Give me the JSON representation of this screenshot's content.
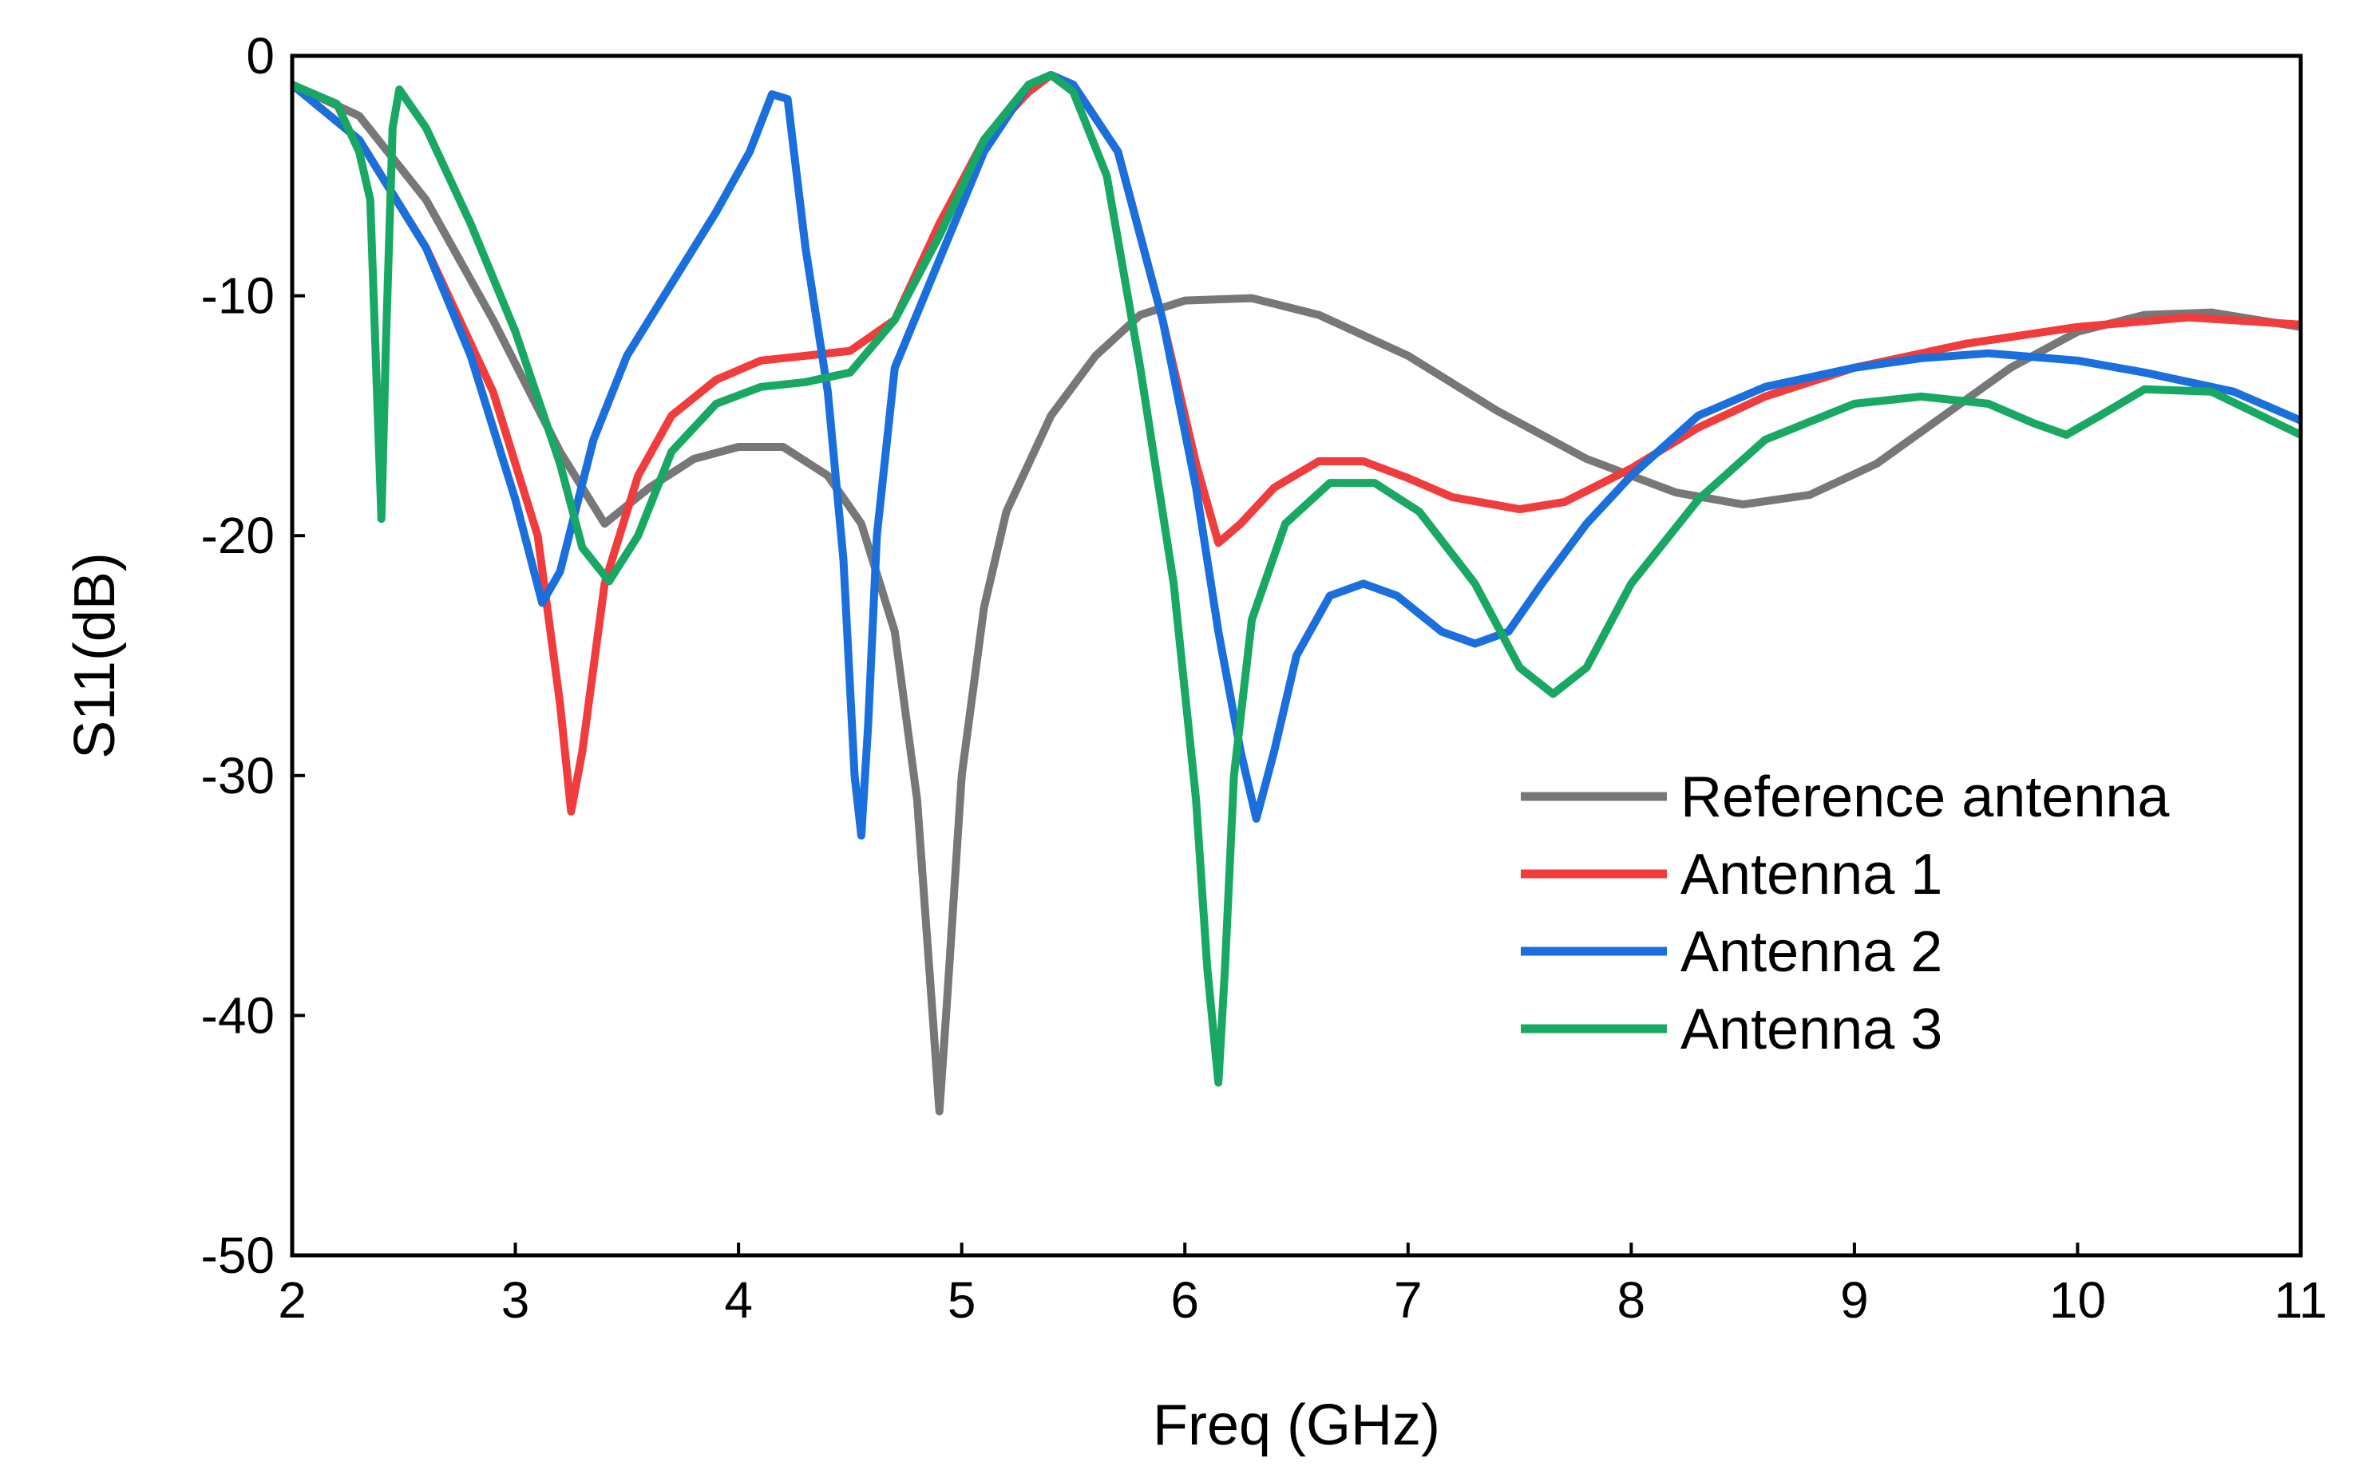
{
  "chart_data": {
    "type": "line",
    "title": "",
    "xlabel": "Freq (GHz)",
    "ylabel": "S11(dB)",
    "xlim": [
      2,
      11
    ],
    "ylim": [
      -50,
      0
    ],
    "x_ticks": [
      2,
      3,
      4,
      5,
      6,
      7,
      8,
      9,
      10,
      11
    ],
    "y_ticks": [
      0,
      -10,
      -20,
      -30,
      -40,
      -50
    ],
    "x_tick_labels": [
      "2",
      "3",
      "4",
      "5",
      "6",
      "7",
      "8",
      "9",
      "10",
      "11"
    ],
    "y_tick_labels": [
      "0",
      "-10",
      "-20",
      "-30",
      "-40",
      "-50"
    ],
    "grid": false,
    "legend_position": "bottom-right",
    "series": [
      {
        "name": "Reference antenna",
        "color": "#777777",
        "points": [
          [
            2.0,
            -1.2
          ],
          [
            2.3,
            -2.5
          ],
          [
            2.6,
            -6.0
          ],
          [
            2.9,
            -11.0
          ],
          [
            3.2,
            -16.5
          ],
          [
            3.4,
            -19.5
          ],
          [
            3.6,
            -18.0
          ],
          [
            3.8,
            -16.8
          ],
          [
            4.0,
            -16.3
          ],
          [
            4.2,
            -16.3
          ],
          [
            4.4,
            -17.5
          ],
          [
            4.55,
            -19.5
          ],
          [
            4.7,
            -24.0
          ],
          [
            4.8,
            -31.0
          ],
          [
            4.87,
            -40.0
          ],
          [
            4.9,
            -44.0
          ],
          [
            4.93,
            -40.0
          ],
          [
            5.0,
            -30.0
          ],
          [
            5.1,
            -23.0
          ],
          [
            5.2,
            -19.0
          ],
          [
            5.4,
            -15.0
          ],
          [
            5.6,
            -12.5
          ],
          [
            5.8,
            -10.8
          ],
          [
            6.0,
            -10.2
          ],
          [
            6.3,
            -10.1
          ],
          [
            6.6,
            -10.8
          ],
          [
            7.0,
            -12.5
          ],
          [
            7.4,
            -14.8
          ],
          [
            7.8,
            -16.8
          ],
          [
            8.2,
            -18.2
          ],
          [
            8.5,
            -18.7
          ],
          [
            8.8,
            -18.3
          ],
          [
            9.1,
            -17.0
          ],
          [
            9.4,
            -15.0
          ],
          [
            9.7,
            -13.0
          ],
          [
            10.0,
            -11.5
          ],
          [
            10.3,
            -10.8
          ],
          [
            10.6,
            -10.7
          ],
          [
            11.0,
            -11.3
          ]
        ]
      },
      {
        "name": "Antenna 1",
        "color": "#f03c3c",
        "points": [
          [
            2.0,
            -1.2
          ],
          [
            2.3,
            -3.5
          ],
          [
            2.6,
            -8.0
          ],
          [
            2.9,
            -14.0
          ],
          [
            3.1,
            -20.0
          ],
          [
            3.2,
            -27.0
          ],
          [
            3.25,
            -31.5
          ],
          [
            3.3,
            -29.0
          ],
          [
            3.4,
            -22.0
          ],
          [
            3.55,
            -17.5
          ],
          [
            3.7,
            -15.0
          ],
          [
            3.9,
            -13.5
          ],
          [
            4.1,
            -12.7
          ],
          [
            4.3,
            -12.5
          ],
          [
            4.5,
            -12.3
          ],
          [
            4.7,
            -11.0
          ],
          [
            4.9,
            -7.0
          ],
          [
            5.1,
            -3.5
          ],
          [
            5.3,
            -1.5
          ],
          [
            5.4,
            -0.8
          ],
          [
            5.5,
            -1.2
          ],
          [
            5.7,
            -4.0
          ],
          [
            5.9,
            -11.0
          ],
          [
            6.05,
            -17.0
          ],
          [
            6.15,
            -20.3
          ],
          [
            6.25,
            -19.5
          ],
          [
            6.4,
            -18.0
          ],
          [
            6.6,
            -16.9
          ],
          [
            6.8,
            -16.9
          ],
          [
            7.0,
            -17.6
          ],
          [
            7.2,
            -18.4
          ],
          [
            7.5,
            -18.9
          ],
          [
            7.7,
            -18.6
          ],
          [
            8.0,
            -17.2
          ],
          [
            8.3,
            -15.5
          ],
          [
            8.6,
            -14.2
          ],
          [
            9.0,
            -13.0
          ],
          [
            9.5,
            -12.0
          ],
          [
            10.0,
            -11.3
          ],
          [
            10.5,
            -10.9
          ],
          [
            11.0,
            -11.2
          ]
        ]
      },
      {
        "name": "Antenna 2",
        "color": "#1a6fdc",
        "points": [
          [
            2.0,
            -1.2
          ],
          [
            2.3,
            -3.5
          ],
          [
            2.6,
            -8.0
          ],
          [
            2.8,
            -12.5
          ],
          [
            3.0,
            -18.5
          ],
          [
            3.12,
            -22.8
          ],
          [
            3.2,
            -21.5
          ],
          [
            3.35,
            -16.0
          ],
          [
            3.5,
            -12.5
          ],
          [
            3.7,
            -9.5
          ],
          [
            3.9,
            -6.5
          ],
          [
            4.05,
            -4.0
          ],
          [
            4.15,
            -1.6
          ],
          [
            4.22,
            -1.8
          ],
          [
            4.3,
            -8.0
          ],
          [
            4.4,
            -14.0
          ],
          [
            4.47,
            -21.0
          ],
          [
            4.52,
            -30.0
          ],
          [
            4.55,
            -32.5
          ],
          [
            4.58,
            -28.0
          ],
          [
            4.62,
            -20.0
          ],
          [
            4.7,
            -13.0
          ],
          [
            4.9,
            -8.5
          ],
          [
            5.1,
            -4.0
          ],
          [
            5.3,
            -1.2
          ],
          [
            5.4,
            -0.8
          ],
          [
            5.5,
            -1.2
          ],
          [
            5.7,
            -4.0
          ],
          [
            5.9,
            -11.0
          ],
          [
            6.05,
            -18.0
          ],
          [
            6.15,
            -24.0
          ],
          [
            6.25,
            -29.0
          ],
          [
            6.32,
            -31.8
          ],
          [
            6.4,
            -29.0
          ],
          [
            6.5,
            -25.0
          ],
          [
            6.65,
            -22.5
          ],
          [
            6.8,
            -22.0
          ],
          [
            6.95,
            -22.5
          ],
          [
            7.15,
            -24.0
          ],
          [
            7.3,
            -24.5
          ],
          [
            7.45,
            -24.0
          ],
          [
            7.6,
            -22.0
          ],
          [
            7.8,
            -19.5
          ],
          [
            8.0,
            -17.5
          ],
          [
            8.3,
            -15.0
          ],
          [
            8.6,
            -13.8
          ],
          [
            9.0,
            -13.0
          ],
          [
            9.3,
            -12.6
          ],
          [
            9.6,
            -12.4
          ],
          [
            10.0,
            -12.7
          ],
          [
            10.3,
            -13.2
          ],
          [
            10.7,
            -14.0
          ],
          [
            11.0,
            -15.2
          ]
        ]
      },
      {
        "name": "Antenna 3",
        "color": "#18a864",
        "points": [
          [
            2.0,
            -1.2
          ],
          [
            2.2,
            -2.0
          ],
          [
            2.3,
            -4.0
          ],
          [
            2.35,
            -6.0
          ],
          [
            2.38,
            -14.0
          ],
          [
            2.4,
            -19.3
          ],
          [
            2.42,
            -12.0
          ],
          [
            2.45,
            -3.0
          ],
          [
            2.48,
            -1.4
          ],
          [
            2.6,
            -3.0
          ],
          [
            2.8,
            -7.0
          ],
          [
            3.0,
            -11.5
          ],
          [
            3.2,
            -17.0
          ],
          [
            3.3,
            -20.5
          ],
          [
            3.42,
            -21.9
          ],
          [
            3.55,
            -20.0
          ],
          [
            3.7,
            -16.5
          ],
          [
            3.9,
            -14.5
          ],
          [
            4.1,
            -13.8
          ],
          [
            4.3,
            -13.6
          ],
          [
            4.5,
            -13.2
          ],
          [
            4.7,
            -11.0
          ],
          [
            4.9,
            -7.5
          ],
          [
            5.1,
            -3.5
          ],
          [
            5.3,
            -1.2
          ],
          [
            5.4,
            -0.8
          ],
          [
            5.5,
            -1.5
          ],
          [
            5.65,
            -5.0
          ],
          [
            5.8,
            -13.0
          ],
          [
            5.95,
            -22.0
          ],
          [
            6.05,
            -31.0
          ],
          [
            6.1,
            -38.0
          ],
          [
            6.15,
            -42.8
          ],
          [
            6.18,
            -38.0
          ],
          [
            6.22,
            -30.0
          ],
          [
            6.3,
            -23.5
          ],
          [
            6.45,
            -19.5
          ],
          [
            6.65,
            -17.8
          ],
          [
            6.85,
            -17.8
          ],
          [
            7.05,
            -19.0
          ],
          [
            7.3,
            -22.0
          ],
          [
            7.5,
            -25.5
          ],
          [
            7.65,
            -26.6
          ],
          [
            7.8,
            -25.5
          ],
          [
            8.0,
            -22.0
          ],
          [
            8.3,
            -18.5
          ],
          [
            8.6,
            -16.0
          ],
          [
            9.0,
            -14.5
          ],
          [
            9.3,
            -14.2
          ],
          [
            9.6,
            -14.5
          ],
          [
            9.8,
            -15.3
          ],
          [
            9.95,
            -15.8
          ],
          [
            10.1,
            -15.0
          ],
          [
            10.3,
            -13.9
          ],
          [
            10.6,
            -14.0
          ],
          [
            11.0,
            -15.8
          ]
        ]
      }
    ]
  }
}
